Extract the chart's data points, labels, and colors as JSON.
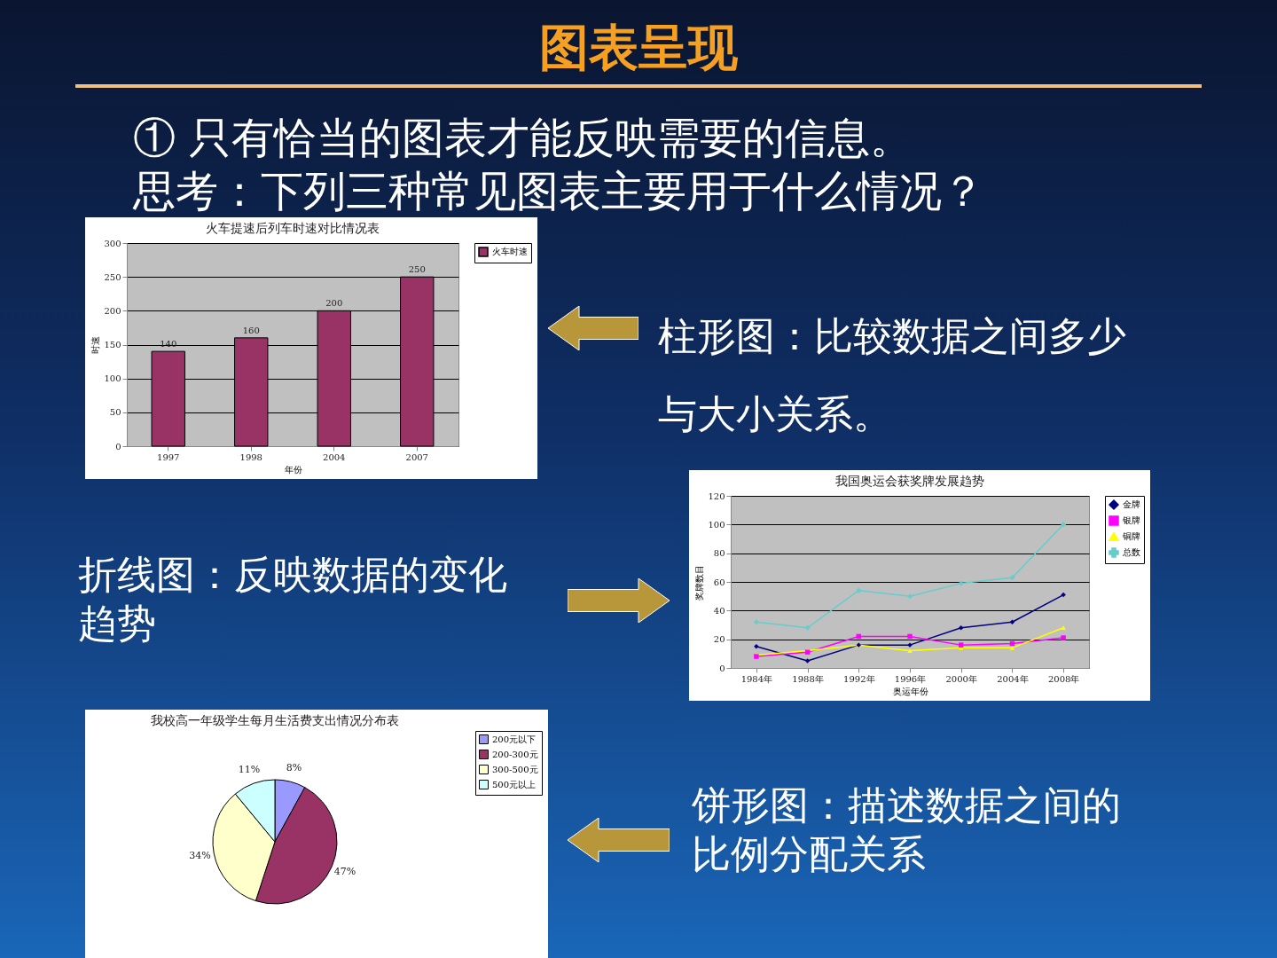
{
  "chart_data": [
    {
      "type": "other",
      "title": "图表呈现",
      "annotations": [
        "① 只有恰当的图表才能反映需要的信息。",
        "思考：下列三种常见图表主要用于什么情况？",
        "柱形图：比较数据之间多少与大小关系。",
        "折线图：反映数据的变化趋势",
        "饼形图：描述数据之间的比例分配关系"
      ]
    },
    {
      "type": "bar",
      "title": "火车提速后列车时速对比情况表",
      "xlabel": "年份",
      "ylabel": "时速",
      "categories": [
        "1997",
        "1998",
        "2004",
        "2007"
      ],
      "series": [
        {
          "name": "火车时速",
          "color": "#993366",
          "values": [
            140,
            160,
            200,
            250
          ]
        }
      ],
      "ylim": [
        0,
        300
      ],
      "yticks": [
        0,
        50,
        100,
        150,
        200,
        250,
        300
      ],
      "grid": "y",
      "legend": "right",
      "data_labels": true
    },
    {
      "type": "line",
      "title": "我国奥运会获奖牌发展趋势",
      "xlabel": "奥运年份",
      "ylabel": "奖牌数目",
      "categories": [
        "1984年",
        "1988年",
        "1992年",
        "1996年",
        "2000年",
        "2004年",
        "2008年"
      ],
      "series": [
        {
          "name": "金牌",
          "color": "#000080",
          "marker": "diamond",
          "values": [
            15,
            5,
            16,
            16,
            28,
            32,
            51
          ]
        },
        {
          "name": "银牌",
          "color": "#ff00ff",
          "marker": "square",
          "values": [
            8,
            11,
            22,
            22,
            16,
            17,
            21
          ]
        },
        {
          "name": "铜牌",
          "color": "#ffff00",
          "marker": "triangle",
          "values": [
            9,
            12,
            16,
            12,
            14,
            14,
            28
          ]
        },
        {
          "name": "总数",
          "color": "#66cccc",
          "marker": "cross",
          "values": [
            32,
            28,
            54,
            50,
            59,
            63,
            100
          ]
        }
      ],
      "ylim": [
        0,
        120
      ],
      "yticks": [
        0,
        20,
        40,
        60,
        80,
        100,
        120
      ],
      "grid": "y",
      "legend": "right"
    },
    {
      "type": "pie",
      "title": "我校高一年级学生每月生活费支出情况分布表",
      "categories": [
        "200元以下",
        "200-300元",
        "300-500元",
        "500元以上"
      ],
      "values": [
        8,
        47,
        34,
        11
      ],
      "colors": [
        "#9999ff",
        "#993366",
        "#ffffcc",
        "#ccffff"
      ],
      "value_labels": [
        "8%",
        "47%",
        "34%",
        "11%"
      ],
      "legend": "right"
    }
  ]
}
